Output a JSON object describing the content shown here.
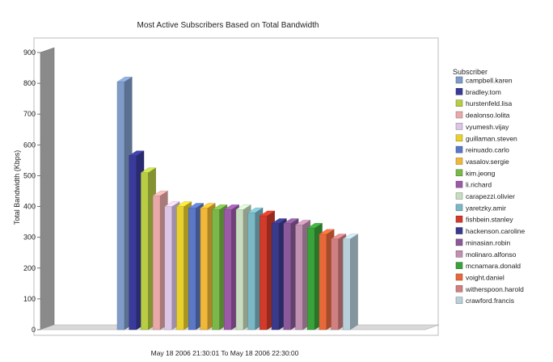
{
  "chart_data": {
    "type": "bar",
    "title": "Most Active Subscribers Based on Total Bandwidth",
    "ylabel": "Total Bandwidth (Kbps)",
    "xlabel": "May 18 2006  21:30:01  To  May 18 2006  22:30:00",
    "ylim": [
      0,
      900
    ],
    "yticks": [
      0,
      100,
      200,
      300,
      400,
      500,
      600,
      700,
      800,
      900
    ],
    "grid": false,
    "legend_title": "Subscriber",
    "legend_position": "right",
    "categories": [
      "campbell.karen",
      "bradley.tom",
      "hurstenfeld.lisa",
      "dealonso.lolita",
      "vyumesh.vijay",
      "guillaman.steven",
      "reinuado.carlo",
      "vasalov.sergie",
      "kim.jeong",
      "li.richard",
      "carapezzi.olivier",
      "yaretzky.amir",
      "fishbein.stanley",
      "hackenson.caroline",
      "minasian.robin",
      "molinaro.alfonso",
      "mcnamara.donald",
      "voight.daniel",
      "witherspoon.harold",
      "crawford.francis"
    ],
    "values": [
      805,
      565,
      510,
      435,
      400,
      400,
      395,
      395,
      390,
      390,
      390,
      380,
      370,
      345,
      345,
      340,
      330,
      310,
      295,
      295
    ],
    "colors": [
      "#7f9cc8",
      "#3a3a9c",
      "#b8cc44",
      "#eaa9a9",
      "#dcc6e6",
      "#e8d12e",
      "#5a78c6",
      "#f0b838",
      "#7ab84a",
      "#9a5aa6",
      "#c8ddc0",
      "#7ab8c6",
      "#d23a2a",
      "#3a3a8c",
      "#8a5a9a",
      "#c090b0",
      "#3aa23a",
      "#e8683a",
      "#d08080",
      "#b8d0da"
    ]
  }
}
